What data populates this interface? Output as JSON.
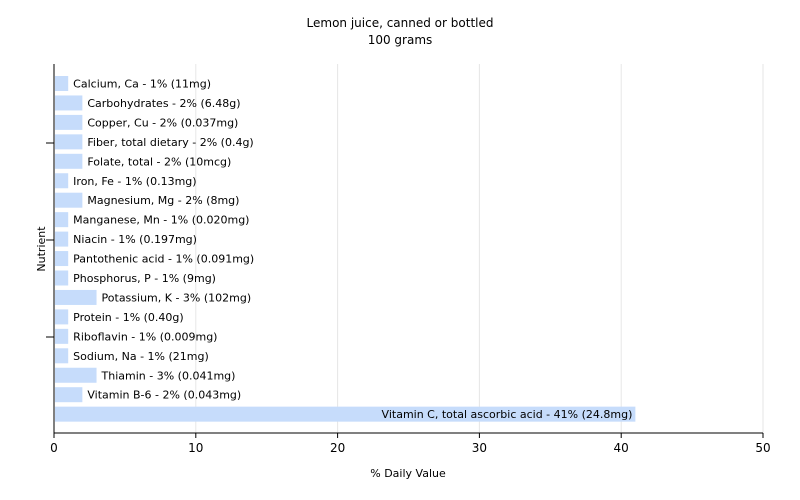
{
  "chart_data": {
    "type": "bar",
    "orientation": "horizontal",
    "title": "Lemon juice, canned or bottled",
    "subtitle": "100 grams",
    "xlabel": "% Daily Value",
    "ylabel": "Nutrient",
    "xlim": [
      0,
      50
    ],
    "xticks": [
      0,
      10,
      20,
      30,
      40,
      50
    ],
    "grid": true,
    "bar_color": "#c6dcfb",
    "grid_color": "#e6e6e6",
    "axis_color": "#000000",
    "categories": [
      "Calcium, Ca",
      "Carbohydrates",
      "Copper, Cu",
      "Fiber, total dietary",
      "Folate, total",
      "Iron, Fe",
      "Magnesium, Mg",
      "Manganese, Mn",
      "Niacin",
      "Pantothenic acid",
      "Phosphorus, P",
      "Potassium, K",
      "Protein",
      "Riboflavin",
      "Sodium, Na",
      "Thiamin",
      "Vitamin B-6",
      "Vitamin C, total ascorbic acid"
    ],
    "values": [
      1,
      2,
      2,
      2,
      2,
      1,
      2,
      1,
      1,
      1,
      1,
      3,
      1,
      1,
      1,
      3,
      2,
      41
    ],
    "labels": [
      "Calcium, Ca - 1% (11mg)",
      "Carbohydrates - 2% (6.48g)",
      "Copper, Cu - 2% (0.037mg)",
      "Fiber, total dietary - 2% (0.4g)",
      "Folate, total - 2% (10mcg)",
      "Iron, Fe - 1% (0.13mg)",
      "Magnesium, Mg - 2% (8mg)",
      "Manganese, Mn - 1% (0.020mg)",
      "Niacin - 1% (0.197mg)",
      "Pantothenic acid - 1% (0.091mg)",
      "Phosphorus, P - 1% (9mg)",
      "Potassium, K - 3% (102mg)",
      "Protein - 1% (0.40g)",
      "Riboflavin - 1% (0.009mg)",
      "Sodium, Na - 1% (21mg)",
      "Thiamin - 3% (0.041mg)",
      "Vitamin B-6 - 2% (0.043mg)",
      "Vitamin C, total ascorbic acid - 41% (24.8mg)"
    ]
  }
}
